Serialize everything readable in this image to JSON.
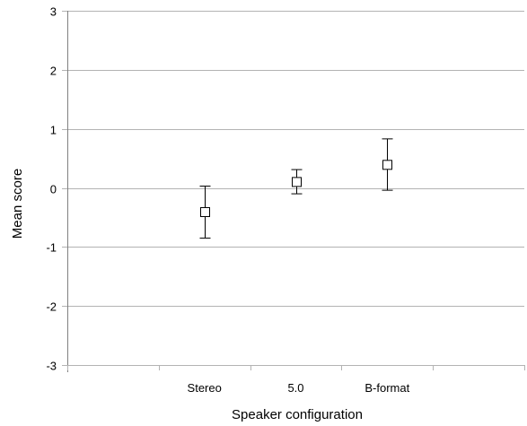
{
  "chart_data": {
    "type": "scatter",
    "title": "",
    "xlabel": "Speaker configuration",
    "ylabel": "Mean score",
    "categories": [
      "Stereo",
      "5.0",
      "B-format"
    ],
    "series": [
      {
        "values": [
          -0.41,
          0.1,
          0.39
        ],
        "error_low": [
          -0.85,
          -0.1,
          -0.04
        ],
        "error_high": [
          0.03,
          0.31,
          0.83
        ]
      }
    ],
    "ylim": [
      -3,
      3
    ],
    "yticks": [
      3,
      2,
      1,
      0,
      -1,
      -2,
      -3
    ],
    "grid": true,
    "legend": "none",
    "marker": "square",
    "colors": {
      "gridline": "#b3b3b3",
      "marker_edge": "#000000",
      "marker_fill": "#ffffff"
    }
  }
}
